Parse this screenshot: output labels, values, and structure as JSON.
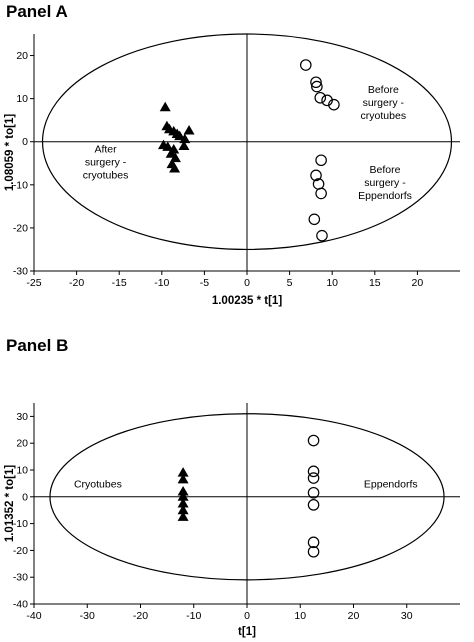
{
  "chart_data": [
    {
      "type": "scatter",
      "title": "Panel A",
      "xlabel": "1.00235 * t[1]",
      "ylabel": "1.08059 * to[1]",
      "xlim": [
        -25,
        25
      ],
      "ylim": [
        -30,
        25
      ],
      "xticks": [
        -25,
        -20,
        -15,
        -10,
        -5,
        0,
        5,
        10,
        15,
        20
      ],
      "yticks": [
        -30,
        -20,
        -10,
        0,
        10,
        20
      ],
      "ellipse": {
        "cx": 0,
        "cy": 0,
        "rx": 24,
        "ry": 25
      },
      "grid": false,
      "series": [
        {
          "marker": "triangle",
          "points": [
            [
              -9.6,
              8
            ],
            [
              -9.4,
              3.6
            ],
            [
              -9.1,
              2.9
            ],
            [
              -8.6,
              2.4
            ],
            [
              -8.2,
              1.8
            ],
            [
              -7.9,
              1.3
            ],
            [
              -9.8,
              -0.8
            ],
            [
              -9.3,
              -1.2
            ],
            [
              -8.6,
              -1.8
            ],
            [
              -8.9,
              -2.8
            ],
            [
              -8.4,
              -3.8
            ],
            [
              -8.8,
              -5.2
            ],
            [
              -8.5,
              -6.2
            ],
            [
              -7.3,
              0.6
            ],
            [
              -6.8,
              2.6
            ],
            [
              -7.4,
              -1.0
            ]
          ]
        },
        {
          "marker": "circle",
          "points": [
            [
              6.9,
              17.8
            ],
            [
              8.1,
              13.8
            ],
            [
              8.2,
              12.8
            ],
            [
              8.6,
              10.2
            ],
            [
              9.4,
              9.6
            ],
            [
              10.2,
              8.6
            ],
            [
              8.7,
              -4.3
            ],
            [
              8.1,
              -7.8
            ],
            [
              8.4,
              -9.8
            ],
            [
              8.7,
              -12.0
            ],
            [
              7.9,
              -18.0
            ],
            [
              8.8,
              -21.8
            ]
          ]
        }
      ],
      "annotations": [
        {
          "lines": [
            "After",
            "surgery -",
            "cryotubes"
          ],
          "x": -16.6,
          "y": -5.5
        },
        {
          "lines": [
            "Before",
            "surgery -",
            "cryotubes"
          ],
          "x": 16.0,
          "y": 8.3
        },
        {
          "lines": [
            "Before",
            "surgery -",
            "Eppendorfs"
          ],
          "x": 16.2,
          "y": -10.3
        }
      ]
    },
    {
      "type": "scatter",
      "title": "Panel B",
      "xlabel": "t[1]",
      "ylabel": "1.01352 * to[1]",
      "xlim": [
        -40,
        40
      ],
      "ylim": [
        -40,
        35
      ],
      "xticks": [
        -40,
        -30,
        -20,
        -10,
        0,
        10,
        20,
        30
      ],
      "yticks": [
        -40,
        -30,
        -20,
        -10,
        0,
        10,
        20,
        30
      ],
      "ellipse": {
        "cx": 0,
        "cy": 0,
        "rx": 37,
        "ry": 31
      },
      "grid": false,
      "series": [
        {
          "marker": "triangle",
          "points": [
            [
              -12,
              9
            ],
            [
              -12,
              6.5
            ],
            [
              -12,
              2
            ],
            [
              -12,
              0
            ],
            [
              -12,
              -2.5
            ],
            [
              -12,
              -5
            ],
            [
              -12,
              -7.5
            ]
          ]
        },
        {
          "marker": "circle",
          "points": [
            [
              12.5,
              21
            ],
            [
              12.5,
              9.5
            ],
            [
              12.5,
              7
            ],
            [
              12.5,
              1.5
            ],
            [
              12.5,
              -3
            ],
            [
              12.5,
              -17
            ],
            [
              12.5,
              -20.5
            ]
          ]
        }
      ],
      "annotations": [
        {
          "lines": [
            "Cryotubes"
          ],
          "x": -28,
          "y": 3.5
        },
        {
          "lines": [
            "Eppendorfs"
          ],
          "x": 27,
          "y": 3.5
        }
      ]
    }
  ]
}
